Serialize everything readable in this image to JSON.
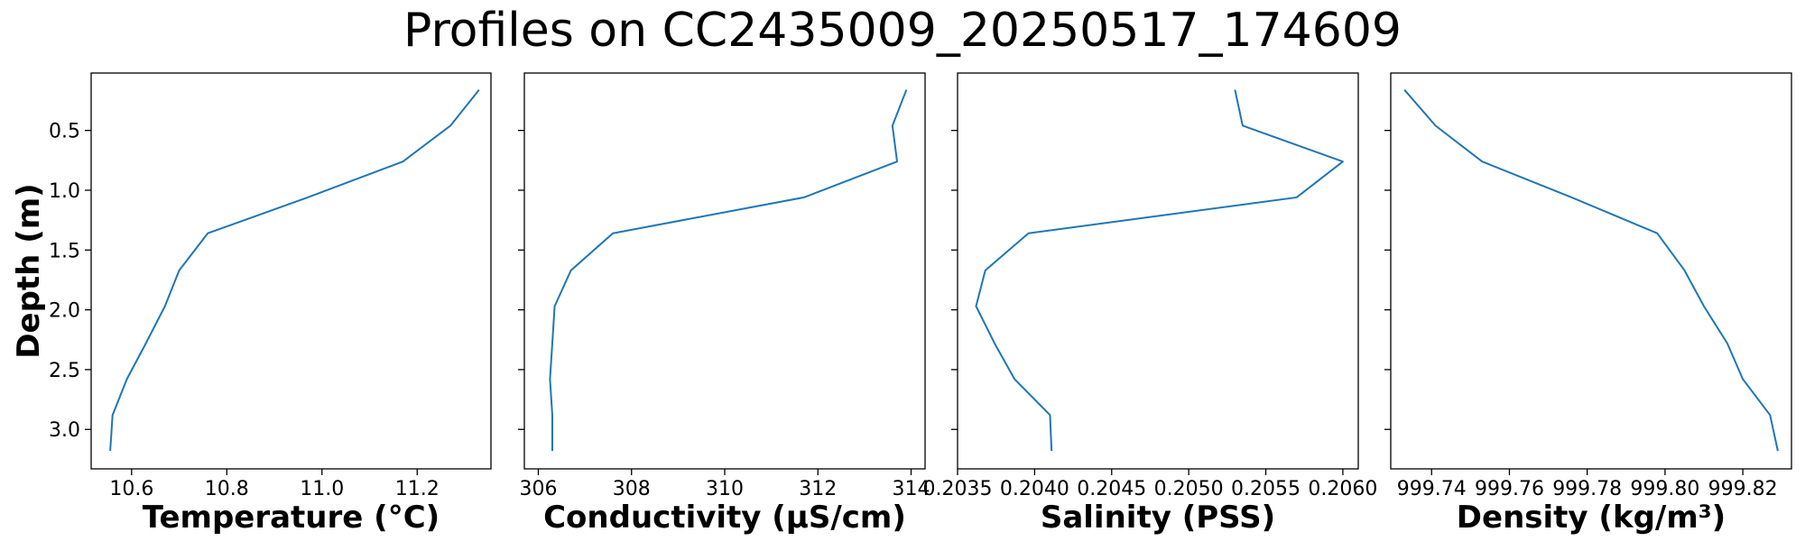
{
  "title": "Profiles on CC2435009_20250517_174609",
  "colors": {
    "line": "#1f77b4",
    "frame": "#000000",
    "background": "#ffffff"
  },
  "chart_data": [
    {
      "type": "line",
      "title": "",
      "xlabel": "Temperature (°C)",
      "ylabel": "Depth (m)",
      "ylim": [
        3.33,
        0.02
      ],
      "y_inverted": true,
      "xlim": [
        10.515,
        11.355
      ],
      "xticks": [
        10.6,
        10.8,
        11.0,
        11.2
      ],
      "xtick_labels": [
        "10.6",
        "10.8",
        "11.0",
        "11.2"
      ],
      "yticks": [
        0.5,
        1.0,
        1.5,
        2.0,
        2.5,
        3.0
      ],
      "ytick_labels": [
        "0.5",
        "1.0",
        "1.5",
        "2.0",
        "2.5",
        "3.0"
      ],
      "grid": false,
      "series": [
        {
          "x": [
            11.33,
            11.27,
            11.17,
            10.97,
            10.76,
            10.7,
            10.67,
            10.63,
            10.59,
            10.56,
            10.555
          ],
          "y": [
            0.16,
            0.46,
            0.76,
            1.06,
            1.36,
            1.67,
            1.97,
            2.28,
            2.58,
            2.88,
            3.18
          ]
        }
      ]
    },
    {
      "type": "line",
      "title": "",
      "xlabel": "Conductivity (µS/cm)",
      "ylabel": "",
      "ylim": [
        3.33,
        0.02
      ],
      "y_inverted": true,
      "xlim": [
        305.7,
        314.3
      ],
      "xticks": [
        306,
        308,
        310,
        312,
        314
      ],
      "xtick_labels": [
        "306",
        "308",
        "310",
        "312",
        "314"
      ],
      "grid": false,
      "series": [
        {
          "x": [
            313.9,
            313.6,
            313.7,
            311.7,
            307.6,
            306.7,
            306.35,
            306.3,
            306.25,
            306.3,
            306.3
          ],
          "y": [
            0.16,
            0.46,
            0.76,
            1.06,
            1.36,
            1.67,
            1.97,
            2.28,
            2.58,
            2.88,
            3.18
          ]
        }
      ]
    },
    {
      "type": "line",
      "title": "",
      "xlabel": "Salinity (PSS)",
      "ylabel": "",
      "ylim": [
        3.33,
        0.02
      ],
      "y_inverted": true,
      "xlim": [
        0.2035,
        0.2061
      ],
      "xticks": [
        0.2035,
        0.204,
        0.2045,
        0.205,
        0.2055,
        0.206
      ],
      "xtick_labels": [
        "0.2035",
        "0.2040",
        "0.2045",
        "0.2050",
        "0.2055",
        "0.2060"
      ],
      "grid": false,
      "series": [
        {
          "x": [
            0.2053,
            0.20535,
            0.206,
            0.2057,
            0.20396,
            0.20368,
            0.20362,
            0.20374,
            0.20387,
            0.2041,
            0.20411
          ],
          "y": [
            0.16,
            0.46,
            0.76,
            1.06,
            1.36,
            1.67,
            1.97,
            2.28,
            2.58,
            2.88,
            3.18
          ]
        }
      ]
    },
    {
      "type": "line",
      "title": "",
      "xlabel": "Density (kg/m³)",
      "ylabel": "",
      "ylim": [
        3.33,
        0.02
      ],
      "y_inverted": true,
      "xlim": [
        999.7295,
        999.8325
      ],
      "xticks": [
        999.74,
        999.76,
        999.78,
        999.8,
        999.82
      ],
      "xtick_labels": [
        "999.74",
        "999.76",
        "999.78",
        "999.80",
        "999.82"
      ],
      "grid": false,
      "series": [
        {
          "x": [
            999.733,
            999.741,
            999.753,
            999.776,
            999.798,
            999.805,
            999.81,
            999.816,
            999.82,
            999.827,
            999.829
          ],
          "y": [
            0.16,
            0.46,
            0.76,
            1.06,
            1.36,
            1.67,
            1.97,
            2.28,
            2.58,
            2.88,
            3.18
          ]
        }
      ]
    }
  ]
}
